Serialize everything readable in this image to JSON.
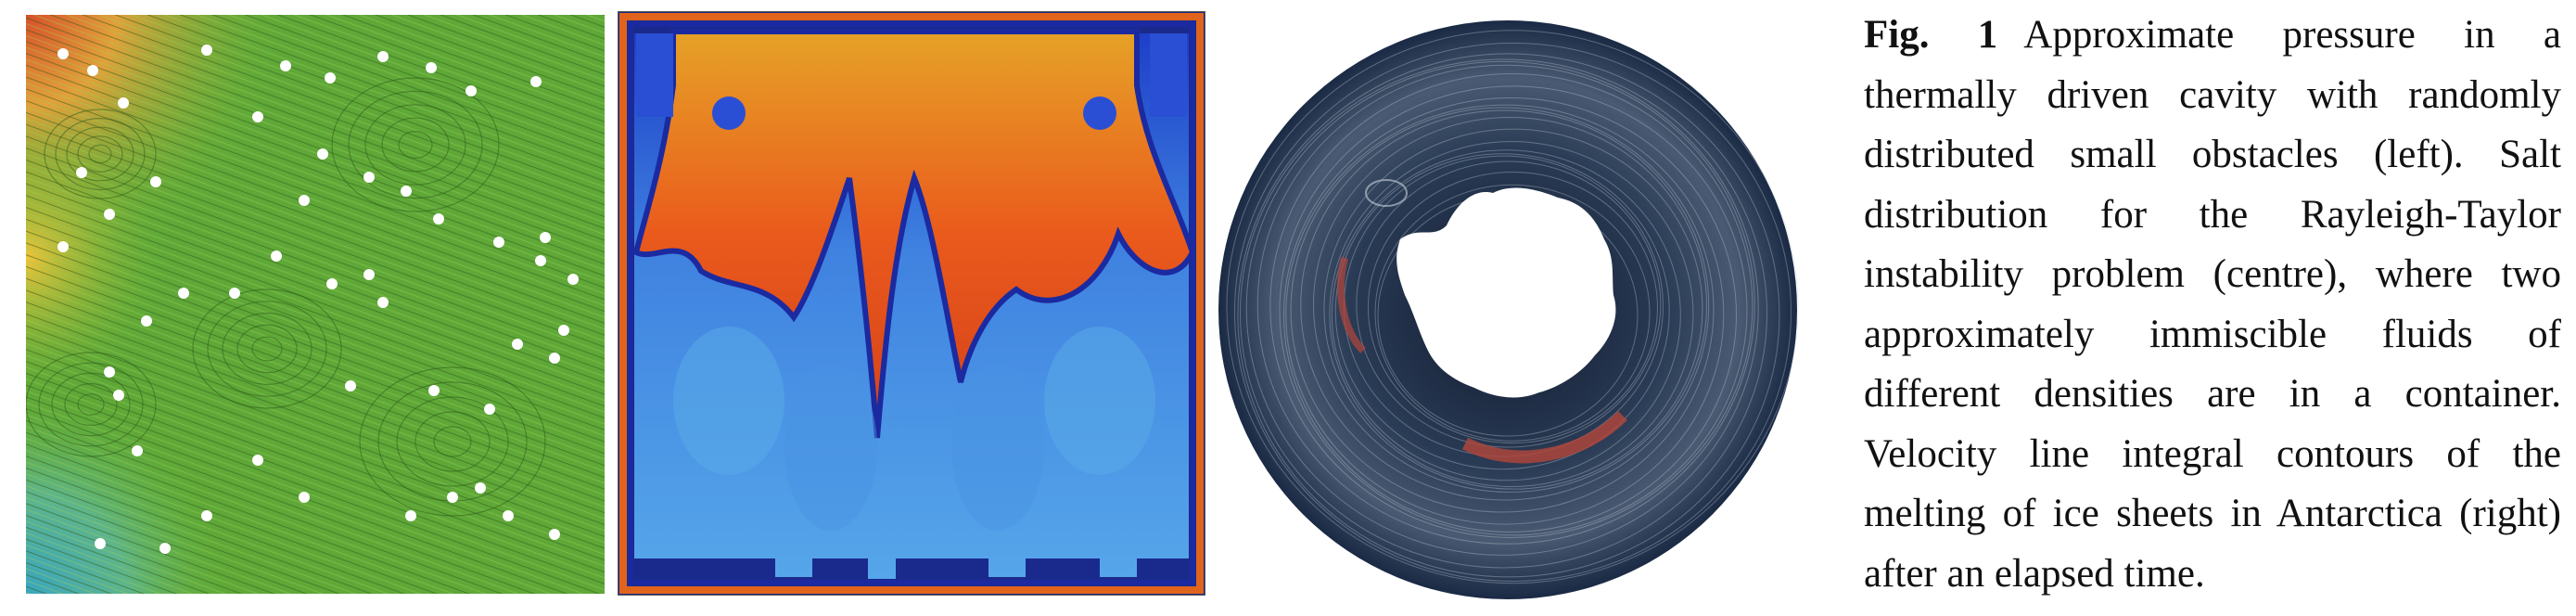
{
  "figure": {
    "label": "Fig. 1",
    "caption": "Approximate pressure in a thermally driven cavity with randomly distributed small obstacles (left). Salt distribution for the Rayleigh-Taylor instability problem (centre), where two approximately immiscible fluids of different densities are in a container. Velocity line integral contours of the melting of ice sheets in Antarctica (right) after an elapsed time.",
    "panels": [
      {
        "id": "left",
        "depicts": "pressure field with streamlines and small circular obstacles"
      },
      {
        "id": "centre",
        "depicts": "Rayleigh-Taylor salt distribution in a container"
      },
      {
        "id": "right",
        "depicts": "velocity line integral contours around Antarctica"
      }
    ]
  },
  "colors": {
    "pressure_low": "#5aa83a",
    "pressure_high": "#e0561d",
    "salt_high": "#e8501c",
    "salt_low": "#2f74d8",
    "ocean_dark": "#14233a",
    "ocean_highlight": "#b4463a"
  }
}
